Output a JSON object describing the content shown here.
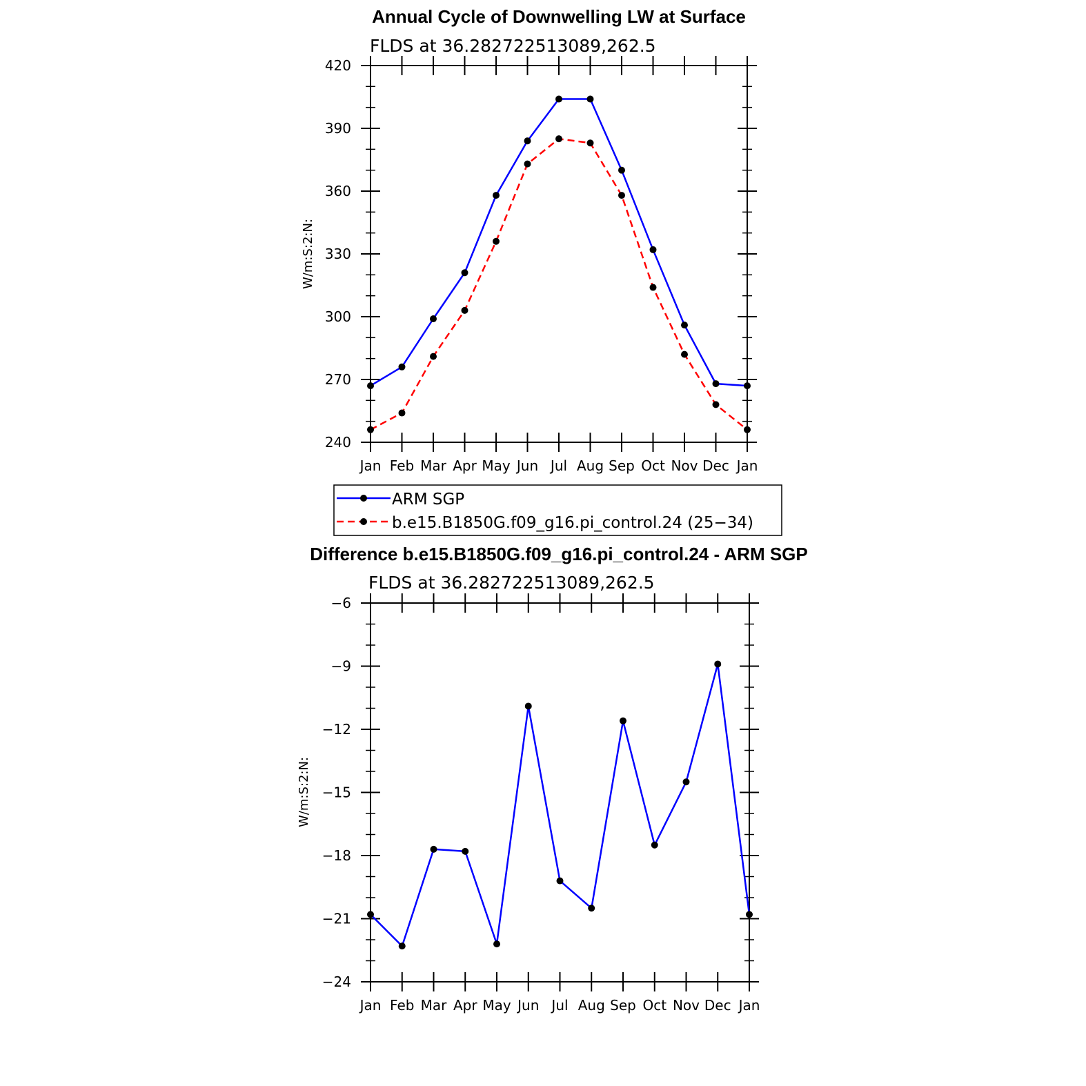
{
  "chart_data": [
    {
      "type": "line",
      "title": "Annual Cycle of Downwelling LW at Surface",
      "subtitle": "FLDS at 36.282722513089,262.5",
      "xlabel": "",
      "ylabel": "W/m:S:2:N:",
      "categories": [
        "Jan",
        "Feb",
        "Mar",
        "Apr",
        "May",
        "Jun",
        "Jul",
        "Aug",
        "Sep",
        "Oct",
        "Nov",
        "Dec",
        "Jan"
      ],
      "ylim": [
        240,
        420
      ],
      "yticks": [
        240,
        270,
        300,
        330,
        360,
        390,
        420
      ],
      "grid": false,
      "legend_position": "bottom",
      "series": [
        {
          "name": "ARM SGP",
          "color": "#0000ff",
          "dash": "solid",
          "marker": "dot",
          "values": [
            267,
            276,
            299,
            321,
            358,
            384,
            404,
            404,
            370,
            332,
            296,
            268,
            267
          ]
        },
        {
          "name": "b.e15.B1850G.f09_g16.pi_control.24 (25−34)",
          "color": "#ff0000",
          "dash": "dashed",
          "marker": "dot",
          "values": [
            246,
            254,
            281,
            303,
            336,
            373,
            385,
            383,
            358,
            314,
            282,
            258,
            246
          ]
        }
      ]
    },
    {
      "type": "line",
      "title": "Difference b.e15.B1850G.f09_g16.pi_control.24 - ARM SGP",
      "subtitle": "FLDS at 36.282722513089,262.5",
      "xlabel": "",
      "ylabel": "W/m:S:2:N:",
      "categories": [
        "Jan",
        "Feb",
        "Mar",
        "Apr",
        "May",
        "Jun",
        "Jul",
        "Aug",
        "Sep",
        "Oct",
        "Nov",
        "Dec",
        "Jan"
      ],
      "ylim": [
        -24,
        -6
      ],
      "yticks": [
        -24,
        -21,
        -18,
        -15,
        -12,
        -9,
        -6
      ],
      "ytick_labels": [
        "−24",
        "−21",
        "−18",
        "−15",
        "−12",
        "−9",
        "−6"
      ],
      "grid": false,
      "series": [
        {
          "color": "#0000ff",
          "dash": "solid",
          "marker": "dot",
          "values": [
            -20.8,
            -22.3,
            -17.7,
            -17.8,
            -22.2,
            -10.9,
            -19.2,
            -20.5,
            -11.6,
            -17.5,
            -14.5,
            -8.9,
            -20.8
          ]
        }
      ]
    }
  ]
}
